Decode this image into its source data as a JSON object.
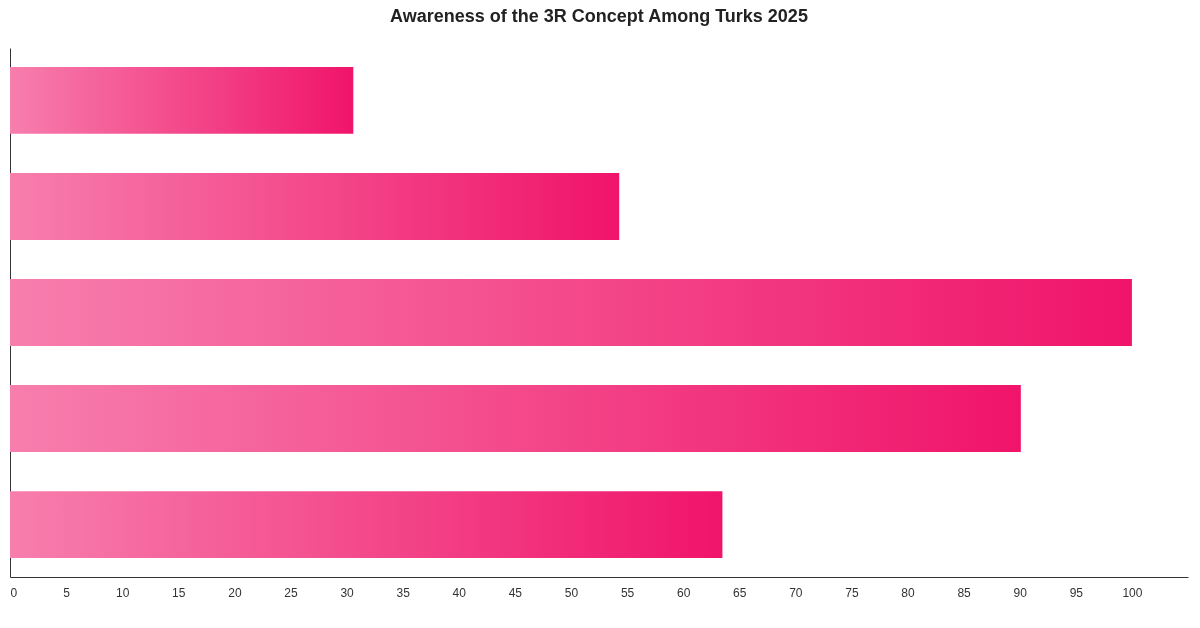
{
  "chart_data": {
    "type": "bar",
    "orientation": "horizontal",
    "title": "Awareness of the 3R Concept Among Turks 2025",
    "categories": [
      null,
      null,
      null,
      null,
      null
    ],
    "values": [
      30.6,
      54.3,
      100,
      90.1,
      63.5
    ],
    "color": "#f0146a",
    "xlim": [
      0,
      105
    ],
    "xticks": [
      0,
      5,
      10,
      15,
      20,
      25,
      30,
      35,
      40,
      45,
      50,
      55,
      60,
      65,
      70,
      75,
      80,
      85,
      90,
      95,
      100
    ],
    "tick_labels": "x"
  }
}
